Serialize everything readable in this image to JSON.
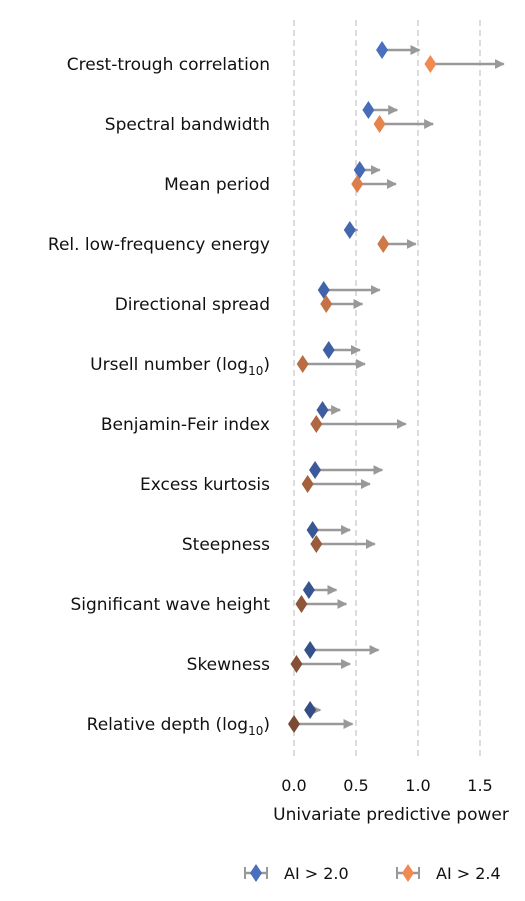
{
  "chart_data": {
    "type": "arrow-dot",
    "xlabel": "Univariate predictive power",
    "xlim": [
      -0.1,
      1.75
    ],
    "xticks": [
      0.0,
      0.5,
      1.0,
      1.5
    ],
    "xtick_labels": [
      "0.0",
      "0.5",
      "1.0",
      "1.5"
    ],
    "vgrid": true,
    "legend_position": "bottom",
    "categories": [
      {
        "label": "Crest-trough correlation"
      },
      {
        "label": "Spectral bandwidth"
      },
      {
        "label": "Mean period"
      },
      {
        "label": "Rel. low-frequency energy"
      },
      {
        "label": "Directional spread"
      },
      {
        "label": "Ursell number (log",
        "sub": "10",
        "suffix": ")"
      },
      {
        "label": "Benjamin-Feir index"
      },
      {
        "label": "Excess kurtosis"
      },
      {
        "label": "Steepness"
      },
      {
        "label": "Significant wave height"
      },
      {
        "label": "Skewness"
      },
      {
        "label": "Relative depth (log",
        "sub": "10",
        "suffix": ")"
      }
    ],
    "series": [
      {
        "name": "AI > 2.0",
        "start": [
          0.71,
          0.6,
          0.53,
          0.45,
          0.24,
          0.28,
          0.23,
          0.17,
          0.15,
          0.12,
          0.13,
          0.13
        ],
        "end": [
          1.02,
          0.84,
          0.7,
          0.52,
          0.7,
          0.54,
          0.38,
          0.72,
          0.46,
          0.35,
          0.69,
          0.22
        ]
      },
      {
        "name": "AI > 2.4",
        "start": [
          1.1,
          0.69,
          0.51,
          0.72,
          0.26,
          0.07,
          0.18,
          0.11,
          0.18,
          0.06,
          0.02,
          0.0
        ],
        "end": [
          1.7,
          1.13,
          0.83,
          0.99,
          0.56,
          0.58,
          0.91,
          0.62,
          0.66,
          0.43,
          0.46,
          0.48
        ]
      }
    ],
    "colors": {
      "arrow": "#999999",
      "grid": "#c4c4c4",
      "legend_ai20": "#4a6fbf",
      "legend_ai24": "#f08a50",
      "ai20_gradient": [
        "#4a6fbf",
        "#324e84"
      ],
      "ai24_gradient": [
        "#f08a50",
        "#7a4a34"
      ]
    }
  }
}
